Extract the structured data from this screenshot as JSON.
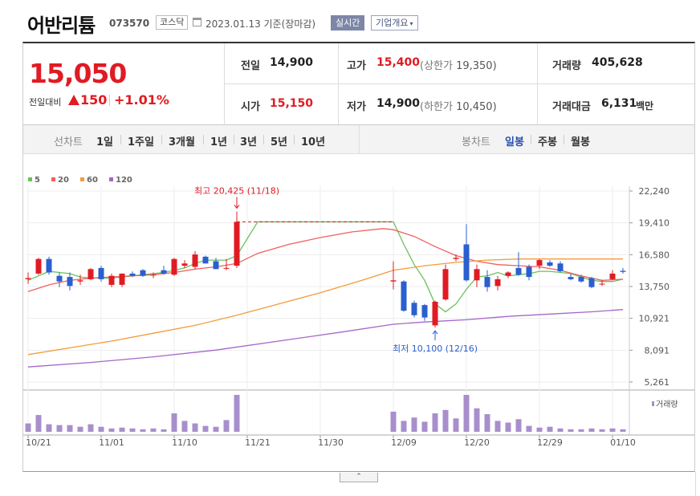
{
  "header": {
    "name": "어반리튬",
    "code": "073570",
    "market": "코스닥",
    "date_text": "2023.01.13 기준(장마감)",
    "realtime_label": "실시간",
    "company_label": "기업개요",
    "company_caret": "▾"
  },
  "price": {
    "current": "15,050",
    "change_label": "전일대비",
    "change_amount": "150",
    "change_pct": "+1.01%"
  },
  "stats": {
    "prev_label": "전일",
    "prev_value": "14,900",
    "high_label": "고가",
    "high_value": "15,400",
    "upper_limit_label": "(상한가",
    "upper_limit_value": "19,350)",
    "volume_label": "거래량",
    "volume_value": "405,628",
    "open_label": "시가",
    "open_value": "15,150",
    "low_label": "저가",
    "low_value": "14,900",
    "lower_limit_label": "(하한가",
    "lower_limit_value": "10,450)",
    "amount_label": "거래대금",
    "amount_value": "6,131",
    "amount_unit": "백만"
  },
  "tabs": {
    "line_label": "선차트",
    "line_items": [
      "1일",
      "1주일",
      "3개월",
      "1년",
      "3년",
      "5년",
      "10년"
    ],
    "candle_label": "봉차트",
    "candle_items": [
      "일봉",
      "주봉",
      "월봉"
    ],
    "candle_active": "일봉"
  },
  "bottom_caret": "⌃",
  "colors": {
    "up": "#e01b23",
    "down": "#2a5fcf",
    "ma5": "#6ac15a",
    "ma20": "#f06060",
    "ma60": "#f59a3a",
    "ma120": "#a566c8",
    "volume": "#a88fcc"
  },
  "chart_data": {
    "type": "candlestick",
    "legend": [
      {
        "label": "5",
        "color": "#6ac15a"
      },
      {
        "label": "20",
        "color": "#f06060"
      },
      {
        "label": "60",
        "color": "#f59a3a"
      },
      {
        "label": "120",
        "color": "#a566c8"
      }
    ],
    "y_ticks": [
      "22,240",
      "19,410",
      "16,580",
      "13,750",
      "10,921",
      "8,091",
      "5,261"
    ],
    "y_tick_values": [
      22240,
      19410,
      16580,
      13750,
      10921,
      8091,
      5261
    ],
    "x_ticks": [
      {
        "label": "10/21",
        "index": 0
      },
      {
        "label": "11/01",
        "index": 7
      },
      {
        "label": "11/10",
        "index": 14
      },
      {
        "label": "11/21",
        "index": 21
      },
      {
        "label": "11/30",
        "index": 28
      },
      {
        "label": "12/09",
        "index": 35
      },
      {
        "label": "12/20",
        "index": 42
      },
      {
        "label": "12/29",
        "index": 49
      },
      {
        "label": "01/10",
        "index": 56
      }
    ],
    "volume_label": "거래량",
    "annotations": [
      {
        "label": "최고 20,425 (11/18)",
        "index": 20,
        "value": 20425,
        "position": "above"
      },
      {
        "label": "최저 10,100 (12/16)",
        "index": 39,
        "value": 10100,
        "position": "below"
      }
    ],
    "max_line": {
      "from_index": 20,
      "to_index": 35,
      "value": 19500
    },
    "candles": [
      {
        "i": 0,
        "o": 14400,
        "h": 15000,
        "l": 14000,
        "c": 14500
      },
      {
        "i": 1,
        "o": 14900,
        "h": 16300,
        "l": 14800,
        "c": 16200
      },
      {
        "i": 2,
        "o": 16200,
        "h": 16400,
        "l": 14800,
        "c": 15000
      },
      {
        "i": 3,
        "o": 14700,
        "h": 15000,
        "l": 13700,
        "c": 14200
      },
      {
        "i": 4,
        "o": 14600,
        "h": 15000,
        "l": 13400,
        "c": 13800
      },
      {
        "i": 5,
        "o": 14200,
        "h": 14800,
        "l": 13900,
        "c": 14300
      },
      {
        "i": 6,
        "o": 14400,
        "h": 15400,
        "l": 14300,
        "c": 15300
      },
      {
        "i": 7,
        "o": 15400,
        "h": 15600,
        "l": 14200,
        "c": 14400
      },
      {
        "i": 8,
        "o": 13900,
        "h": 14900,
        "l": 13700,
        "c": 14700
      },
      {
        "i": 9,
        "o": 13900,
        "h": 14900,
        "l": 13700,
        "c": 14900
      },
      {
        "i": 10,
        "o": 14900,
        "h": 15100,
        "l": 14600,
        "c": 14700
      },
      {
        "i": 11,
        "o": 15200,
        "h": 15300,
        "l": 14600,
        "c": 14700
      },
      {
        "i": 12,
        "o": 14800,
        "h": 15000,
        "l": 14500,
        "c": 14800
      },
      {
        "i": 13,
        "o": 15200,
        "h": 15600,
        "l": 14800,
        "c": 14900
      },
      {
        "i": 14,
        "o": 14800,
        "h": 16300,
        "l": 14700,
        "c": 16200
      },
      {
        "i": 15,
        "o": 15600,
        "h": 16100,
        "l": 15400,
        "c": 15800
      },
      {
        "i": 16,
        "o": 15500,
        "h": 16900,
        "l": 15300,
        "c": 16600
      },
      {
        "i": 17,
        "o": 16400,
        "h": 16500,
        "l": 15800,
        "c": 15800
      },
      {
        "i": 18,
        "o": 16000,
        "h": 16300,
        "l": 15300,
        "c": 15300
      },
      {
        "i": 19,
        "o": 15400,
        "h": 16200,
        "l": 15200,
        "c": 15400
      },
      {
        "i": 20,
        "o": 15600,
        "h": 20425,
        "l": 15400,
        "c": 19500
      },
      {
        "i": 35,
        "o": 14200,
        "h": 16000,
        "l": 13500,
        "c": 14300
      },
      {
        "i": 36,
        "o": 14200,
        "h": 14300,
        "l": 11500,
        "c": 11600
      },
      {
        "i": 37,
        "o": 12300,
        "h": 12500,
        "l": 11000,
        "c": 11200
      },
      {
        "i": 38,
        "o": 12100,
        "h": 12200,
        "l": 10700,
        "c": 11000
      },
      {
        "i": 39,
        "o": 10300,
        "h": 12500,
        "l": 10100,
        "c": 12400
      },
      {
        "i": 40,
        "o": 12600,
        "h": 15700,
        "l": 12500,
        "c": 15300
      },
      {
        "i": 41,
        "o": 16200,
        "h": 16600,
        "l": 16000,
        "c": 16300
      },
      {
        "i": 42,
        "o": 17500,
        "h": 19300,
        "l": 14200,
        "c": 14300
      },
      {
        "i": 43,
        "o": 14300,
        "h": 15700,
        "l": 13700,
        "c": 15300
      },
      {
        "i": 44,
        "o": 14600,
        "h": 15200,
        "l": 13300,
        "c": 13700
      },
      {
        "i": 45,
        "o": 13800,
        "h": 14700,
        "l": 13400,
        "c": 14400
      },
      {
        "i": 46,
        "o": 14700,
        "h": 15100,
        "l": 14500,
        "c": 15000
      },
      {
        "i": 47,
        "o": 15400,
        "h": 16800,
        "l": 14700,
        "c": 14800
      },
      {
        "i": 48,
        "o": 15500,
        "h": 15700,
        "l": 14300,
        "c": 14600
      },
      {
        "i": 49,
        "o": 15600,
        "h": 16200,
        "l": 15300,
        "c": 16100
      },
      {
        "i": 50,
        "o": 15900,
        "h": 16100,
        "l": 15500,
        "c": 15600
      },
      {
        "i": 51,
        "o": 15800,
        "h": 16000,
        "l": 15000,
        "c": 15100
      },
      {
        "i": 52,
        "o": 14600,
        "h": 14900,
        "l": 14300,
        "c": 14400
      },
      {
        "i": 53,
        "o": 14600,
        "h": 14800,
        "l": 14100,
        "c": 14200
      },
      {
        "i": 54,
        "o": 14500,
        "h": 14600,
        "l": 13600,
        "c": 13700
      },
      {
        "i": 55,
        "o": 14000,
        "h": 14300,
        "l": 13800,
        "c": 14000
      },
      {
        "i": 56,
        "o": 14400,
        "h": 15200,
        "l": 14300,
        "c": 14900
      },
      {
        "i": 57,
        "o": 15150,
        "h": 15400,
        "l": 14900,
        "c": 15050
      }
    ],
    "volumes": [
      {
        "i": 0,
        "v": 10
      },
      {
        "i": 1,
        "v": 20
      },
      {
        "i": 2,
        "v": 9
      },
      {
        "i": 3,
        "v": 8
      },
      {
        "i": 4,
        "v": 8
      },
      {
        "i": 5,
        "v": 6
      },
      {
        "i": 6,
        "v": 9
      },
      {
        "i": 7,
        "v": 6
      },
      {
        "i": 8,
        "v": 4
      },
      {
        "i": 9,
        "v": 5
      },
      {
        "i": 10,
        "v": 4
      },
      {
        "i": 11,
        "v": 3
      },
      {
        "i": 12,
        "v": 4
      },
      {
        "i": 13,
        "v": 3
      },
      {
        "i": 14,
        "v": 22
      },
      {
        "i": 15,
        "v": 13
      },
      {
        "i": 16,
        "v": 10
      },
      {
        "i": 17,
        "v": 7
      },
      {
        "i": 18,
        "v": 6
      },
      {
        "i": 19,
        "v": 14
      },
      {
        "i": 20,
        "v": 44
      },
      {
        "i": 35,
        "v": 24
      },
      {
        "i": 36,
        "v": 13
      },
      {
        "i": 37,
        "v": 17
      },
      {
        "i": 38,
        "v": 12
      },
      {
        "i": 39,
        "v": 22
      },
      {
        "i": 40,
        "v": 26
      },
      {
        "i": 41,
        "v": 16
      },
      {
        "i": 42,
        "v": 44
      },
      {
        "i": 43,
        "v": 28
      },
      {
        "i": 44,
        "v": 21
      },
      {
        "i": 45,
        "v": 13
      },
      {
        "i": 46,
        "v": 11
      },
      {
        "i": 47,
        "v": 15
      },
      {
        "i": 48,
        "v": 7
      },
      {
        "i": 49,
        "v": 5
      },
      {
        "i": 50,
        "v": 6
      },
      {
        "i": 51,
        "v": 4
      },
      {
        "i": 52,
        "v": 3
      },
      {
        "i": 53,
        "v": 3
      },
      {
        "i": 54,
        "v": 4
      },
      {
        "i": 55,
        "v": 3
      },
      {
        "i": 56,
        "v": 4
      },
      {
        "i": 57,
        "v": 3
      }
    ],
    "ma": {
      "ma5": [
        [
          0,
          14300
        ],
        [
          1,
          14700
        ],
        [
          2,
          15100
        ],
        [
          3,
          15000
        ],
        [
          4,
          14900
        ],
        [
          5,
          14600
        ],
        [
          6,
          14500
        ],
        [
          7,
          14500
        ],
        [
          8,
          14500
        ],
        [
          9,
          14600
        ],
        [
          10,
          14700
        ],
        [
          11,
          14800
        ],
        [
          12,
          14900
        ],
        [
          13,
          15000
        ],
        [
          14,
          15200
        ],
        [
          15,
          15400
        ],
        [
          16,
          15800
        ],
        [
          17,
          16100
        ],
        [
          18,
          16100
        ],
        [
          19,
          16100
        ],
        [
          20,
          16500
        ],
        [
          22,
          19500
        ],
        [
          35,
          19500
        ],
        [
          36,
          17500
        ],
        [
          37,
          15700
        ],
        [
          38,
          14300
        ],
        [
          39,
          12200
        ],
        [
          40,
          11500
        ],
        [
          41,
          12200
        ],
        [
          42,
          13500
        ],
        [
          43,
          14600
        ],
        [
          44,
          14700
        ],
        [
          45,
          15000
        ],
        [
          46,
          14700
        ],
        [
          47,
          14800
        ],
        [
          48,
          14900
        ],
        [
          49,
          15100
        ],
        [
          50,
          15100
        ],
        [
          51,
          15000
        ],
        [
          52,
          14900
        ],
        [
          53,
          14600
        ],
        [
          54,
          14300
        ],
        [
          55,
          14200
        ],
        [
          56,
          14200
        ],
        [
          57,
          14400
        ]
      ],
      "ma20": [
        [
          0,
          13300
        ],
        [
          2,
          13900
        ],
        [
          4,
          14300
        ],
        [
          6,
          14500
        ],
        [
          8,
          14600
        ],
        [
          10,
          14700
        ],
        [
          12,
          14800
        ],
        [
          14,
          15000
        ],
        [
          16,
          15300
        ],
        [
          18,
          15500
        ],
        [
          20,
          15800
        ],
        [
          22,
          16700
        ],
        [
          25,
          17500
        ],
        [
          28,
          18100
        ],
        [
          31,
          18600
        ],
        [
          34,
          18900
        ],
        [
          35,
          18800
        ],
        [
          37,
          18200
        ],
        [
          39,
          17300
        ],
        [
          41,
          16500
        ],
        [
          43,
          16000
        ],
        [
          45,
          15700
        ],
        [
          47,
          15600
        ],
        [
          49,
          15500
        ],
        [
          51,
          15200
        ],
        [
          53,
          14700
        ],
        [
          55,
          14300
        ],
        [
          57,
          14400
        ]
      ],
      "ma60": [
        [
          0,
          7700
        ],
        [
          4,
          8300
        ],
        [
          8,
          8900
        ],
        [
          12,
          9600
        ],
        [
          16,
          10300
        ],
        [
          20,
          11200
        ],
        [
          24,
          12200
        ],
        [
          28,
          13200
        ],
        [
          32,
          14300
        ],
        [
          35,
          15200
        ],
        [
          38,
          15600
        ],
        [
          41,
          15900
        ],
        [
          44,
          16100
        ],
        [
          47,
          16200
        ],
        [
          50,
          16200
        ],
        [
          54,
          16200
        ],
        [
          57,
          16200
        ]
      ],
      "ma120": [
        [
          0,
          6600
        ],
        [
          6,
          7000
        ],
        [
          12,
          7500
        ],
        [
          18,
          8100
        ],
        [
          24,
          8900
        ],
        [
          30,
          9700
        ],
        [
          35,
          10400
        ],
        [
          38,
          10600
        ],
        [
          42,
          10800
        ],
        [
          46,
          11100
        ],
        [
          50,
          11300
        ],
        [
          54,
          11500
        ],
        [
          57,
          11700
        ]
      ]
    },
    "ylim": [
      5261,
      22240
    ],
    "x_count": 58,
    "grid": true
  }
}
